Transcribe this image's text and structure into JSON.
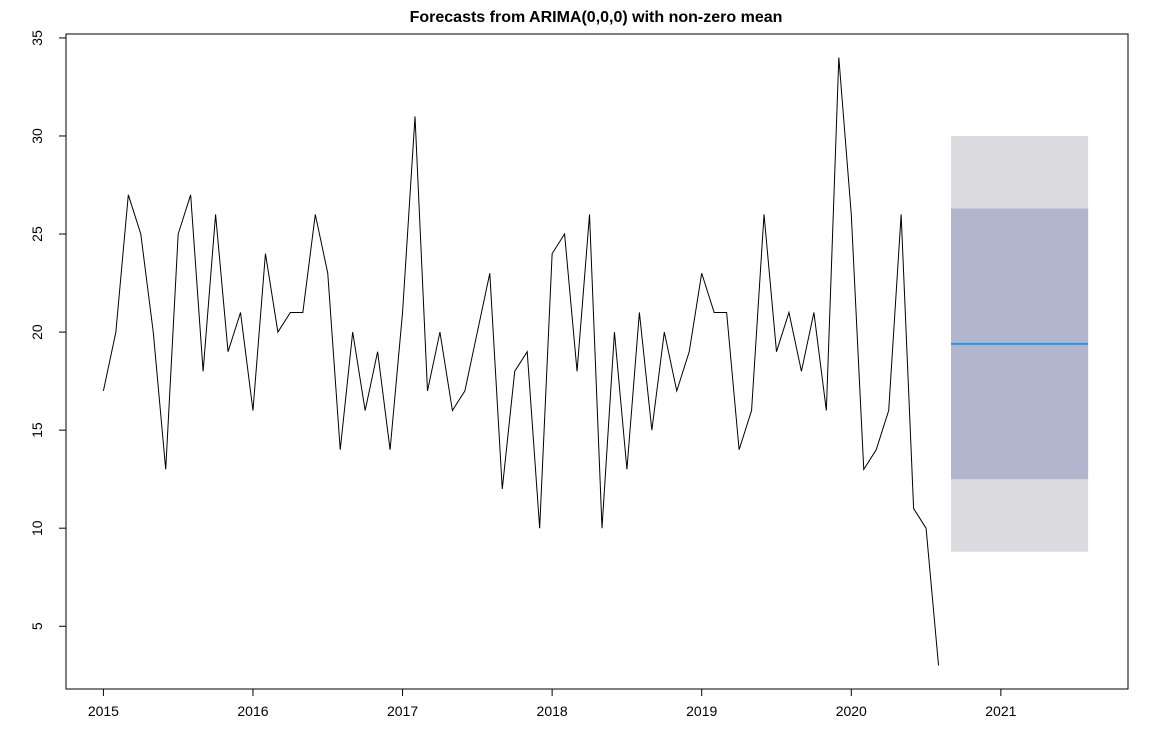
{
  "chart_data": {
    "type": "line",
    "title": "Forecasts from ARIMA(0,0,0) with non-zero mean",
    "xlabel": "",
    "ylabel": "",
    "xlim": [
      2014.75,
      2021.85
    ],
    "ylim": [
      1.8,
      35.2
    ],
    "x_ticks": [
      2015,
      2016,
      2017,
      2018,
      2019,
      2020,
      2021
    ],
    "x_tick_labels": [
      "2015",
      "2016",
      "2017",
      "2018",
      "2019",
      "2020",
      "2021"
    ],
    "y_ticks": [
      5,
      10,
      15,
      20,
      25,
      30,
      35
    ],
    "y_tick_labels": [
      "5",
      "10",
      "15",
      "20",
      "25",
      "30",
      "35"
    ],
    "grid": false,
    "series": [
      {
        "start": 2015.0,
        "frequency": 12,
        "color": "#000000",
        "values": [
          17,
          20,
          27,
          25,
          20,
          13,
          25,
          27,
          18,
          26,
          19,
          21,
          16,
          24,
          20,
          21,
          21,
          26,
          23,
          14,
          20,
          16,
          19,
          14,
          21,
          31,
          17,
          20,
          16,
          17,
          20,
          23,
          12,
          18,
          19,
          10,
          24,
          25,
          18,
          26,
          10,
          20,
          13,
          21,
          15,
          20,
          17,
          19,
          23,
          21,
          21,
          14,
          16,
          26,
          19,
          21,
          18,
          21,
          16,
          34,
          26,
          13,
          14,
          16,
          26,
          11,
          10,
          3
        ]
      }
    ],
    "forecast": {
      "x_start": 2020.6667,
      "x_end": 2021.5833,
      "mean": 19.4,
      "lower_80": 12.5,
      "upper_80": 26.3,
      "lower_95": 8.8,
      "upper_95": 30.0,
      "mean_color": "#2297e6",
      "band_80_color": "#b1b5ce",
      "band_95_color": "#dbdbdf"
    }
  }
}
